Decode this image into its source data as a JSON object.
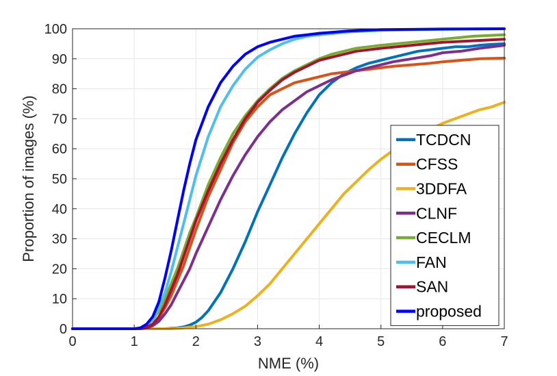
{
  "chart_data": {
    "type": "line",
    "title": "",
    "xlabel": "NME (%)",
    "ylabel": "Proportion of images (%)",
    "xlim": [
      0,
      7
    ],
    "ylim": [
      0,
      100
    ],
    "xticks": [
      0,
      1,
      2,
      3,
      4,
      5,
      6,
      7
    ],
    "yticks": [
      0,
      10,
      20,
      30,
      40,
      50,
      60,
      70,
      80,
      90,
      100
    ],
    "grid": true,
    "legend_position": "bottom-right",
    "series": [
      {
        "name": "TCDCN",
        "color": "#0072BD",
        "x": [
          0,
          1.5,
          1.7,
          1.8,
          1.9,
          2.0,
          2.1,
          2.2,
          2.4,
          2.6,
          2.8,
          3.0,
          3.2,
          3.4,
          3.6,
          3.8,
          4.0,
          4.2,
          4.4,
          4.6,
          4.8,
          5.0,
          5.2,
          5.4,
          5.6,
          5.8,
          6.0,
          6.2,
          6.4,
          6.6,
          6.8,
          7.0
        ],
        "y": [
          0,
          0,
          0.3,
          0.6,
          1.2,
          2.2,
          3.8,
          6,
          12,
          20,
          29,
          39,
          48,
          57,
          65,
          72,
          78,
          82,
          85,
          87,
          88.5,
          89.5,
          90.5,
          91.5,
          92.5,
          93,
          93.5,
          94,
          94,
          94.5,
          94.8,
          95
        ]
      },
      {
        "name": "CFSS",
        "color": "#D95319",
        "x": [
          0,
          1.1,
          1.2,
          1.3,
          1.4,
          1.5,
          1.6,
          1.7,
          1.8,
          1.9,
          2.0,
          2.2,
          2.4,
          2.6,
          2.8,
          3.0,
          3.2,
          3.4,
          3.6,
          3.8,
          4.0,
          4.2,
          4.4,
          4.6,
          4.8,
          5.0,
          5.2,
          5.5,
          5.8,
          6.0,
          6.3,
          6.6,
          7.0
        ],
        "y": [
          0,
          0,
          0.5,
          1.5,
          3.5,
          7,
          11,
          16,
          21,
          27,
          33,
          44,
          53,
          62,
          69,
          74,
          78,
          80,
          82,
          83,
          84,
          85,
          85.5,
          86,
          86.5,
          87,
          87.5,
          88,
          88.5,
          89,
          89.5,
          90,
          90.2
        ]
      },
      {
        "name": "3DDFA",
        "color": "#EDB120",
        "x": [
          0,
          1.6,
          1.8,
          2.0,
          2.2,
          2.4,
          2.6,
          2.8,
          3.0,
          3.2,
          3.4,
          3.6,
          3.8,
          4.0,
          4.2,
          4.4,
          4.6,
          4.8,
          5.0,
          5.2,
          5.4,
          5.6,
          5.8,
          6.0,
          6.2,
          6.4,
          6.6,
          6.8,
          7.0
        ],
        "y": [
          0,
          0,
          0.3,
          0.7,
          1.5,
          3,
          5,
          7.5,
          11,
          15,
          20,
          25,
          30,
          35,
          40,
          45,
          49,
          53,
          56.5,
          59.5,
          62,
          64.5,
          66.5,
          68.5,
          70,
          71.5,
          73,
          74,
          75.5
        ]
      },
      {
        "name": "CLNF",
        "color": "#7E2F8E",
        "x": [
          0,
          1.1,
          1.2,
          1.3,
          1.4,
          1.5,
          1.6,
          1.7,
          1.8,
          1.9,
          2.0,
          2.2,
          2.4,
          2.6,
          2.8,
          3.0,
          3.2,
          3.4,
          3.6,
          3.8,
          4.0,
          4.2,
          4.4,
          4.6,
          4.8,
          5.0,
          5.2,
          5.5,
          5.8,
          6.0,
          6.3,
          6.6,
          7.0
        ],
        "y": [
          0,
          0,
          0.3,
          1,
          2.5,
          5,
          8,
          12,
          16,
          20,
          25,
          34,
          43,
          51,
          58,
          64,
          69,
          73,
          76,
          79,
          81,
          83,
          84.5,
          86,
          87,
          88,
          89,
          90,
          91,
          92,
          92.5,
          93.5,
          94.5
        ]
      },
      {
        "name": "CECLM",
        "color": "#77AC30",
        "x": [
          0,
          1.05,
          1.2,
          1.3,
          1.4,
          1.5,
          1.6,
          1.7,
          1.8,
          1.9,
          2.0,
          2.2,
          2.4,
          2.6,
          2.8,
          3.0,
          3.2,
          3.4,
          3.6,
          3.8,
          4.0,
          4.2,
          4.4,
          4.6,
          4.8,
          5.0,
          5.5,
          6.0,
          6.5,
          7.0
        ],
        "y": [
          0,
          0,
          1,
          3,
          6,
          10,
          15,
          20,
          26,
          32,
          37,
          48,
          57,
          65,
          71,
          76,
          80,
          83.5,
          86,
          88,
          90,
          91.5,
          92.5,
          93.5,
          94,
          94.5,
          95.5,
          96.5,
          97.5,
          98
        ]
      },
      {
        "name": "FAN",
        "color": "#4DBEEE",
        "x": [
          0,
          1.05,
          1.2,
          1.3,
          1.4,
          1.5,
          1.6,
          1.7,
          1.8,
          1.9,
          2.0,
          2.2,
          2.4,
          2.6,
          2.8,
          3.0,
          3.2,
          3.4,
          3.6,
          3.8,
          4.0,
          4.5,
          5.0,
          5.5,
          6.0,
          7.0
        ],
        "y": [
          0,
          0,
          1,
          3,
          7,
          12,
          19,
          27,
          35,
          43,
          51,
          64,
          74,
          81,
          86.5,
          90.5,
          93,
          95,
          96.5,
          97.5,
          98,
          99,
          99.5,
          99.7,
          99.8,
          100
        ]
      },
      {
        "name": "SAN",
        "color": "#A2142F",
        "x": [
          0,
          1.1,
          1.2,
          1.3,
          1.4,
          1.5,
          1.6,
          1.7,
          1.8,
          1.9,
          2.0,
          2.2,
          2.4,
          2.6,
          2.8,
          3.0,
          3.2,
          3.4,
          3.6,
          3.8,
          4.0,
          4.2,
          4.4,
          4.6,
          4.8,
          5.0,
          5.5,
          6.0,
          6.5,
          7.0
        ],
        "y": [
          0,
          0,
          0.5,
          1.5,
          4,
          8,
          13,
          18,
          24,
          30,
          36,
          46,
          55,
          63,
          70,
          75.5,
          79.5,
          83,
          85.5,
          87.5,
          89.5,
          90.5,
          91.5,
          92.5,
          93,
          93.5,
          94.5,
          95.5,
          96,
          96.5
        ]
      },
      {
        "name": "proposed",
        "color": "#0000FF",
        "x": [
          0,
          1.0,
          1.1,
          1.2,
          1.3,
          1.4,
          1.5,
          1.6,
          1.7,
          1.8,
          1.9,
          2.0,
          2.2,
          2.4,
          2.6,
          2.8,
          3.0,
          3.2,
          3.4,
          3.6,
          3.8,
          4.0,
          4.5,
          5.0,
          5.5,
          6.0,
          7.0
        ],
        "y": [
          0,
          0,
          0.3,
          1.5,
          4,
          9,
          17,
          26,
          36,
          46,
          55,
          63,
          74,
          82,
          87.5,
          91.5,
          94,
          95.5,
          96.5,
          97.5,
          98,
          98.5,
          99.3,
          99.7,
          99.8,
          99.9,
          100
        ]
      }
    ]
  }
}
